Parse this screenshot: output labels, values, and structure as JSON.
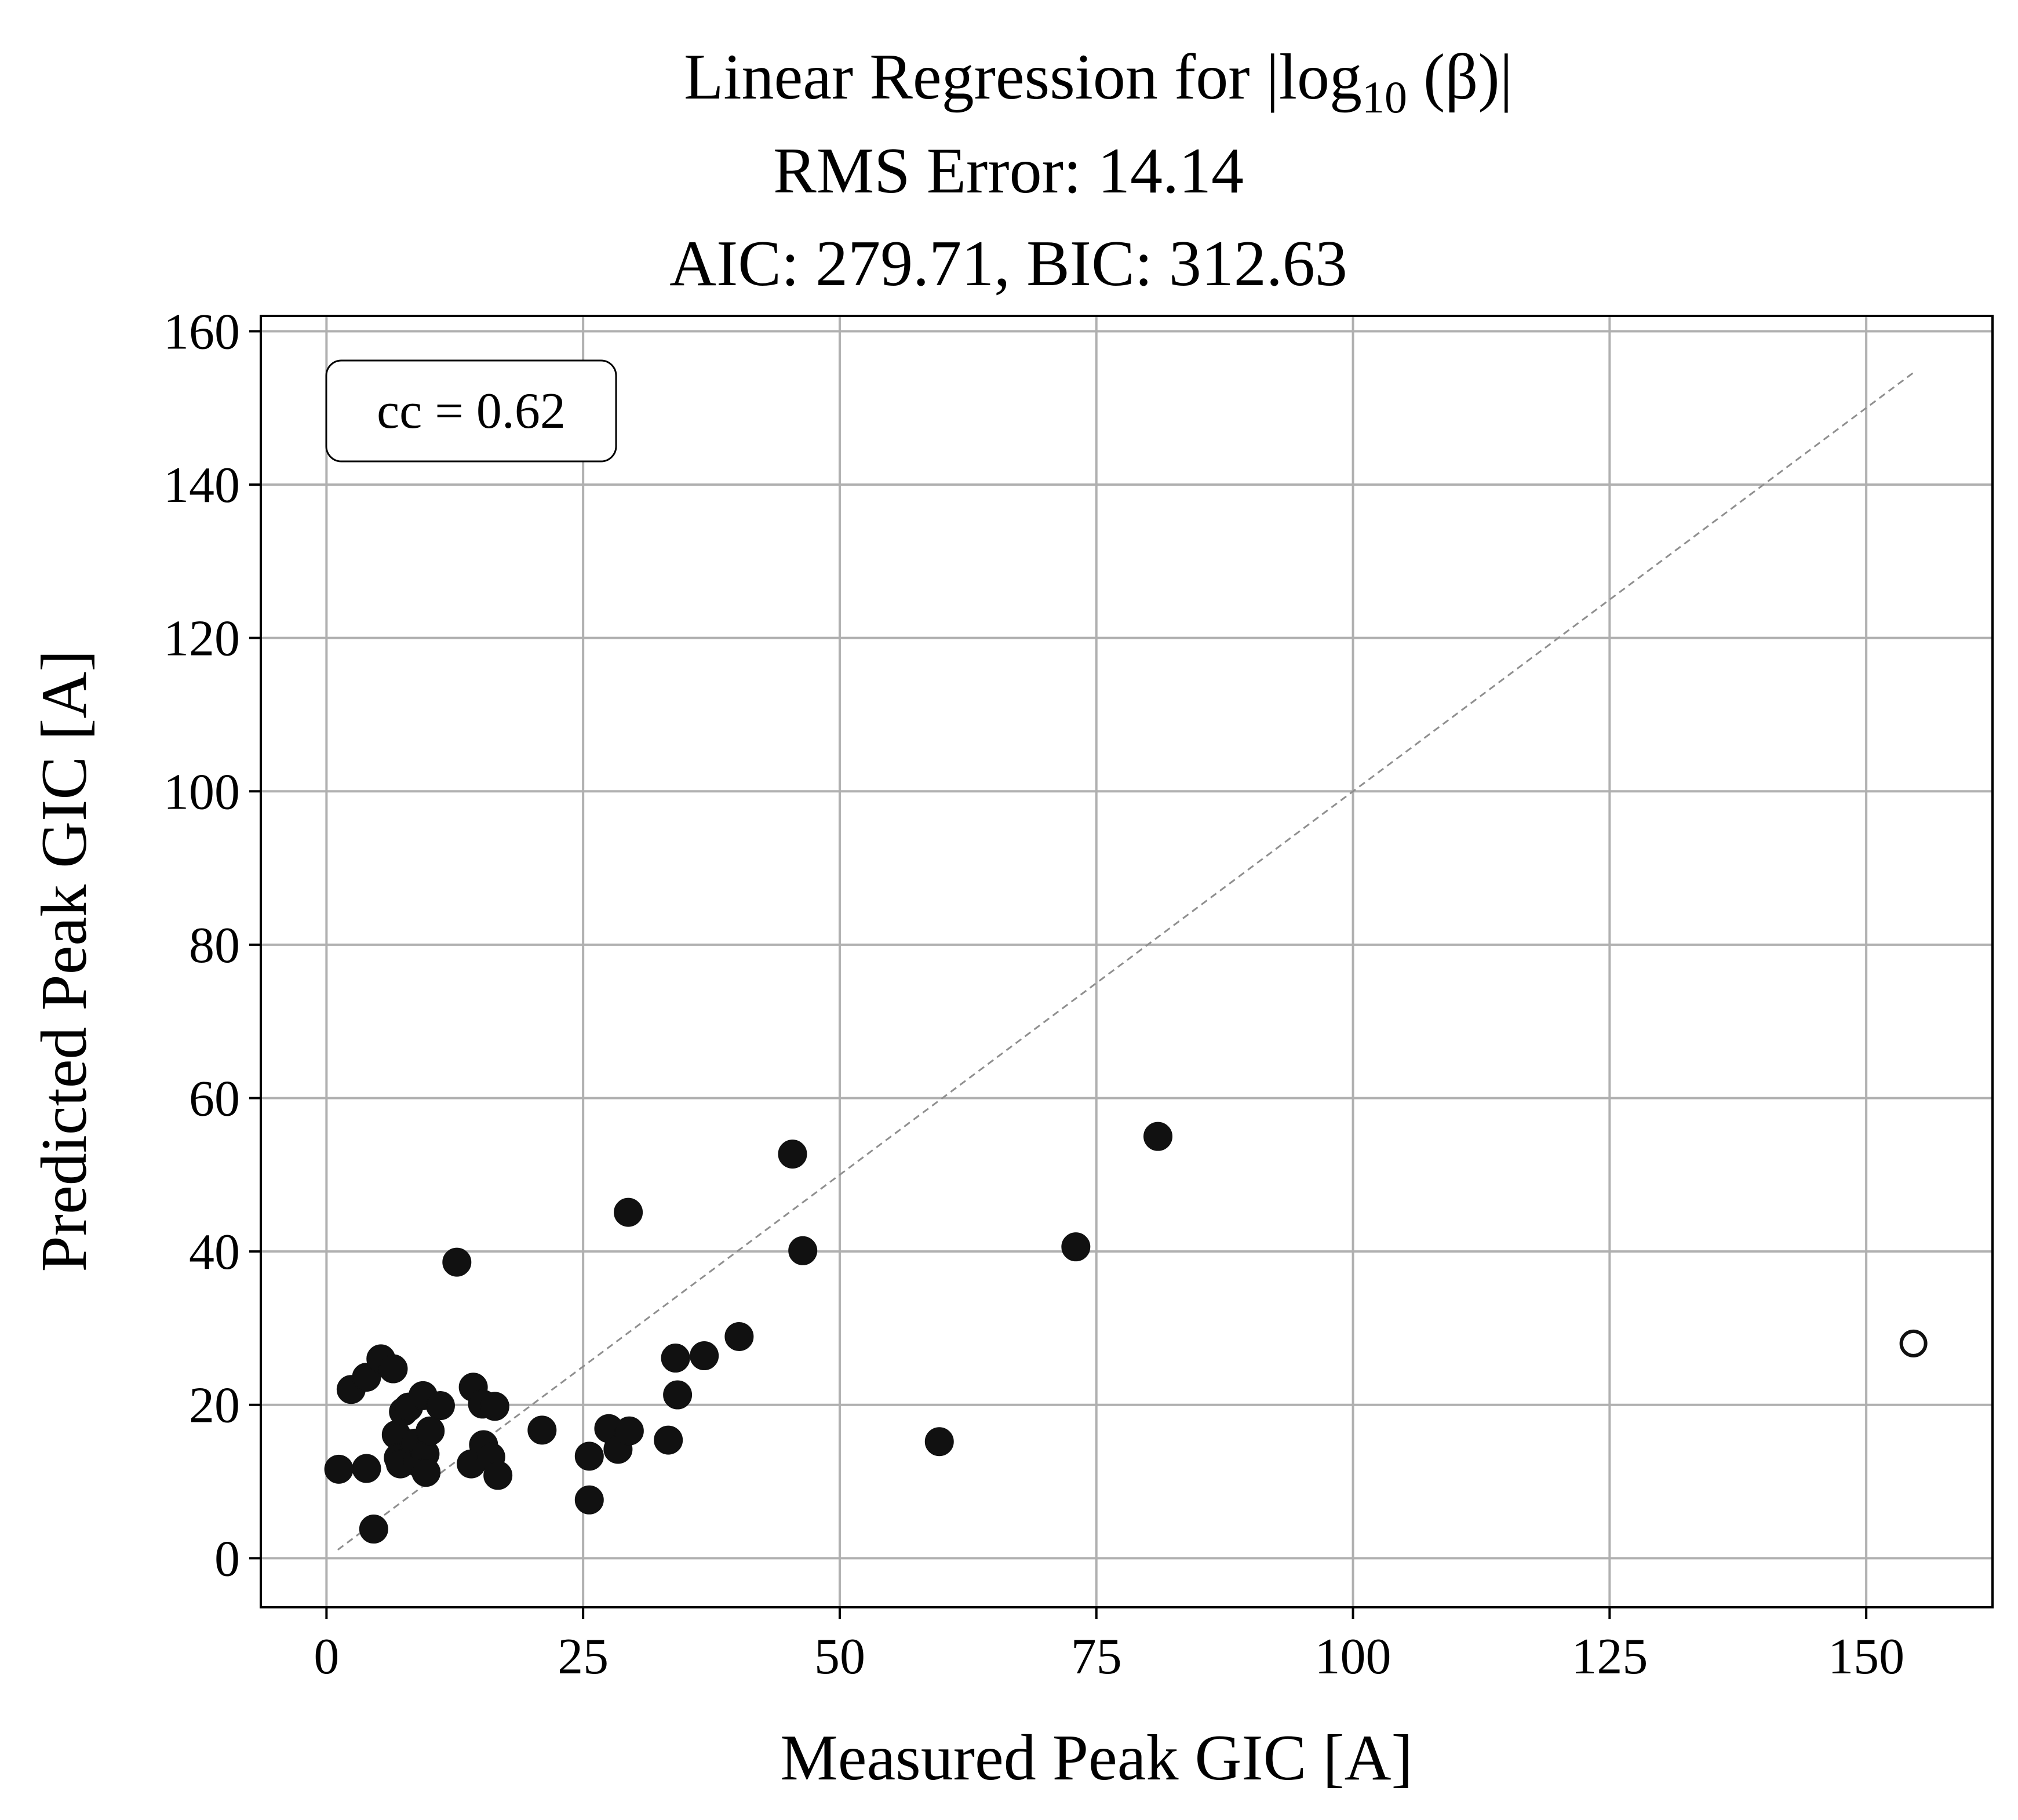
{
  "chart_data": {
    "type": "scatter",
    "title": {
      "line1_prefix": "Linear Regression for |log",
      "line1_sub": "10",
      "line1_suffix": " (β)|",
      "line2": "RMS Error: 14.14",
      "line3": "AIC: 279.71, BIC: 312.63"
    },
    "xlabel": "Measured Peak GIC [A]",
    "ylabel": "Predicted Peak GIC [A]",
    "xlim": [
      -6.4,
      162.3
    ],
    "ylim": [
      -6.4,
      162.0
    ],
    "xticks": [
      0,
      25,
      50,
      75,
      100,
      125,
      150
    ],
    "yticks": [
      0,
      20,
      40,
      60,
      80,
      100,
      120,
      140,
      160
    ],
    "grid": true,
    "annotation": "cc = 0.62",
    "annotation_placement": "top-left",
    "reference_line": {
      "style": "dashed",
      "color": "#8f8f8f",
      "x": [
        1.1,
        154.6
      ],
      "y": [
        1.1,
        154.6
      ]
    },
    "point_color": "#111111",
    "series": [
      {
        "marker": "filled-circle",
        "points": [
          [
            1.2,
            11.6
          ],
          [
            2.4,
            22.0
          ],
          [
            3.9,
            23.6
          ],
          [
            3.9,
            11.7
          ],
          [
            4.6,
            3.8
          ],
          [
            5.3,
            26.0
          ],
          [
            6.5,
            24.7
          ],
          [
            6.8,
            16.1
          ],
          [
            7.0,
            13.1
          ],
          [
            7.2,
            12.3
          ],
          [
            7.5,
            19.1
          ],
          [
            8.0,
            19.7
          ],
          [
            8.6,
            15.0
          ],
          [
            8.9,
            12.5
          ],
          [
            9.4,
            21.2
          ],
          [
            9.6,
            13.6
          ],
          [
            9.7,
            11.2
          ],
          [
            10.1,
            16.6
          ],
          [
            11.1,
            19.9
          ],
          [
            12.7,
            38.6
          ],
          [
            14.1,
            12.3
          ],
          [
            14.3,
            22.3
          ],
          [
            15.2,
            20.1
          ],
          [
            15.3,
            14.8
          ],
          [
            16.0,
            13.2
          ],
          [
            16.4,
            19.8
          ],
          [
            16.7,
            10.8
          ],
          [
            21.0,
            16.7
          ],
          [
            25.6,
            13.3
          ],
          [
            25.6,
            7.6
          ],
          [
            27.5,
            16.9
          ],
          [
            28.4,
            14.2
          ],
          [
            29.4,
            45.1
          ],
          [
            29.5,
            16.6
          ],
          [
            33.3,
            15.4
          ],
          [
            34.0,
            26.1
          ],
          [
            34.2,
            21.3
          ],
          [
            36.8,
            26.4
          ],
          [
            40.2,
            28.9
          ],
          [
            45.4,
            52.7
          ],
          [
            46.4,
            40.1
          ],
          [
            59.7,
            15.2
          ],
          [
            73.0,
            40.6
          ],
          [
            81.0,
            55.0
          ]
        ]
      },
      {
        "marker": "open-circle",
        "points": [
          [
            154.6,
            28.0
          ]
        ]
      }
    ]
  }
}
